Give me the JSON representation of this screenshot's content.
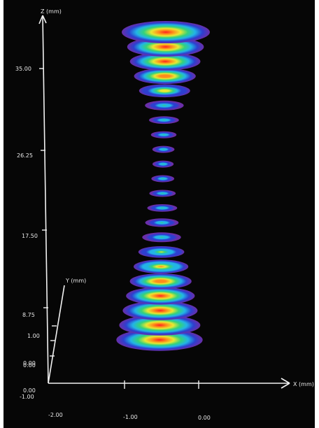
{
  "chart_data": {
    "type": "3d-beam-profile",
    "title": "",
    "axes": {
      "z": {
        "label": "Z (mm)",
        "ticks": [
          "35.00",
          "26.25",
          "17.50",
          "8.75",
          "0.00"
        ],
        "tick_values": [
          35.0,
          26.25,
          17.5,
          8.75,
          0.0
        ]
      },
      "y": {
        "label": "Y (mm)",
        "ticks": [
          "1.00",
          "0.00",
          "-1.00"
        ],
        "tick_values": [
          1.0,
          0.0,
          -1.0
        ]
      },
      "x": {
        "label": "X (mm)",
        "ticks": [
          "-2.00",
          "-1.00",
          "0.00"
        ],
        "tick_values": [
          -2.0,
          -1.0,
          0.0
        ]
      }
    },
    "slices": {
      "count": 22,
      "z_range_mm": [
        0.0,
        38.0
      ],
      "relative_beam_width": [
        0.98,
        0.92,
        0.85,
        0.78,
        0.7,
        0.62,
        0.52,
        0.44,
        0.38,
        0.34,
        0.3,
        0.26,
        0.24,
        0.25,
        0.29,
        0.34,
        0.44,
        0.58,
        0.7,
        0.8,
        0.87,
        1.0
      ]
    },
    "colormap": [
      "#6a2ea8",
      "#2d3fd0",
      "#22b4e6",
      "#34d27a",
      "#e8e832",
      "#ff8c1a",
      "#ff2020"
    ]
  }
}
